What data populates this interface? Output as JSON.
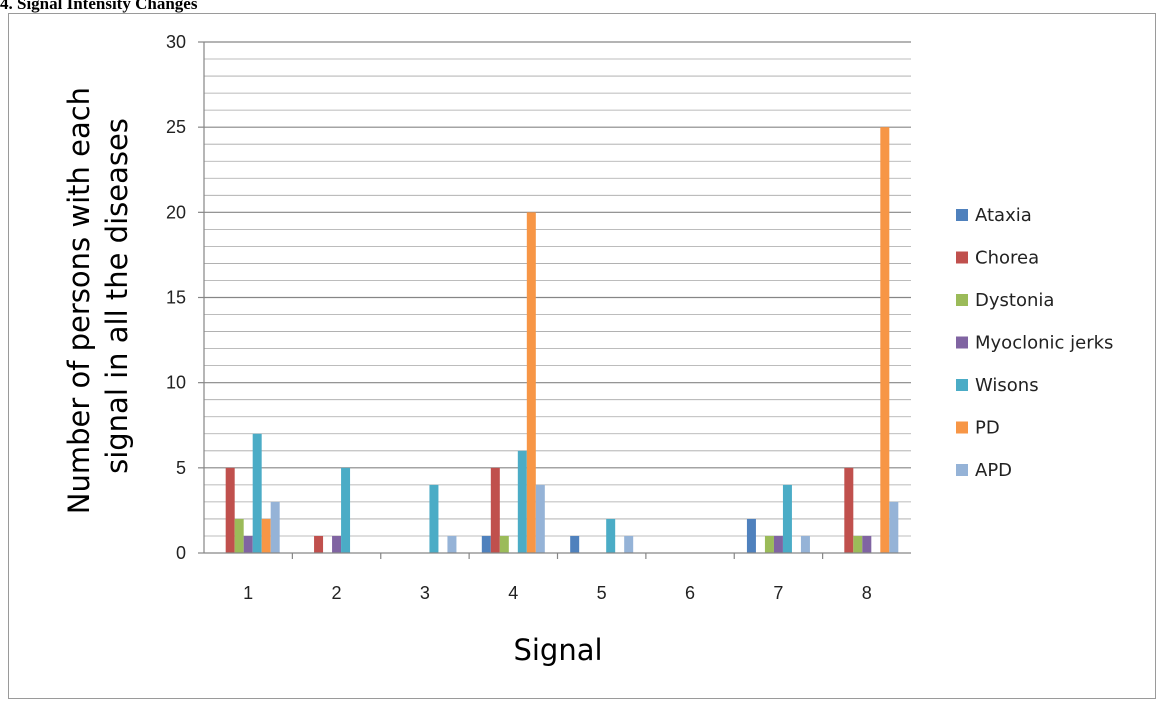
{
  "page": {
    "heading": "4. Signal Intensity Changes"
  },
  "chart_data": {
    "type": "bar",
    "title": "",
    "xlabel": "Signal",
    "ylabel": "Number of persons with each signal in all the diseases",
    "ylabel_lines": [
      "Number of persons with each",
      "signal in all the diseases"
    ],
    "categories": [
      "1",
      "2",
      "3",
      "4",
      "5",
      "6",
      "7",
      "8"
    ],
    "ylim": [
      0,
      30
    ],
    "yticks": [
      0,
      5,
      10,
      15,
      20,
      25,
      30
    ],
    "minor_gridline_step": 1,
    "grid": true,
    "legend_position": "right",
    "series": [
      {
        "name": "Ataxia",
        "color": "#4f81bd",
        "values": [
          0,
          0,
          0,
          1,
          1,
          0,
          2,
          0
        ]
      },
      {
        "name": "Chorea",
        "color": "#c0504d",
        "values": [
          5,
          1,
          0,
          5,
          0,
          0,
          0,
          5
        ]
      },
      {
        "name": "Dystonia",
        "color": "#9bbb59",
        "values": [
          2,
          0,
          0,
          1,
          0,
          0,
          1,
          1
        ]
      },
      {
        "name": "Myoclonic jerks",
        "color": "#8064a2",
        "values": [
          1,
          1,
          0,
          0,
          0,
          0,
          1,
          1
        ]
      },
      {
        "name": "Wisons",
        "color": "#4bacc6",
        "values": [
          7,
          5,
          4,
          6,
          2,
          0,
          4,
          0
        ]
      },
      {
        "name": "PD",
        "color": "#f79646",
        "values": [
          2,
          0,
          0,
          20,
          0,
          0,
          0,
          25
        ]
      },
      {
        "name": "APD",
        "color": "#95b3d7",
        "values": [
          3,
          0,
          1,
          4,
          1,
          0,
          1,
          3
        ]
      }
    ]
  }
}
